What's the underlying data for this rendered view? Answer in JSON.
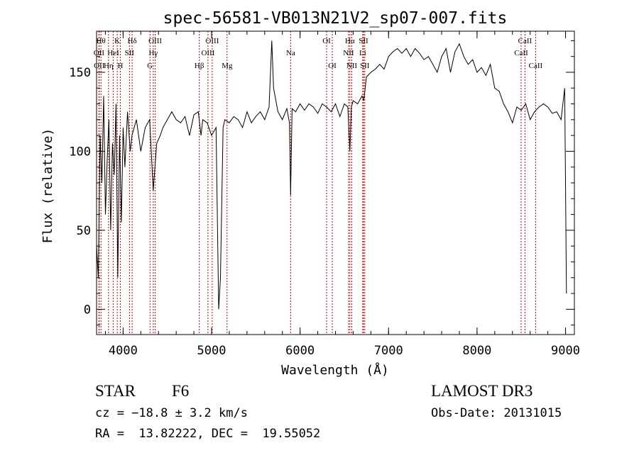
{
  "chart_data": {
    "type": "line",
    "title": "spec-56581-VB013N21V2_sp07-007.fits",
    "xlabel": "Wavelength (Å)",
    "ylabel": "Flux (relative)",
    "xlim": [
      3700,
      9100
    ],
    "ylim": [
      -16,
      176
    ],
    "xticks": [
      4000,
      5000,
      6000,
      7000,
      8000,
      9000
    ],
    "yticks": [
      0,
      50,
      100,
      150
    ],
    "grid": false,
    "line_color": "#000000",
    "marker_color": "#cc0000",
    "series": [
      {
        "x": [
          3700,
          3720,
          3740,
          3760,
          3780,
          3800,
          3820,
          3840,
          3860,
          3880,
          3900,
          3920,
          3940,
          3960,
          3980,
          4000,
          4020,
          4050,
          4080,
          4100,
          4150,
          4200,
          4250,
          4300,
          4340,
          4380,
          4420,
          4450,
          4500,
          4550,
          4600,
          4650,
          4700,
          4750,
          4800,
          4850,
          4880,
          4900,
          4950,
          5000,
          5050,
          5080,
          5100,
          5130,
          5150,
          5200,
          5250,
          5300,
          5350,
          5400,
          5450,
          5500,
          5550,
          5600,
          5650,
          5680,
          5700,
          5750,
          5800,
          5850,
          5880,
          5893,
          5910,
          5950,
          6000,
          6050,
          6100,
          6150,
          6200,
          6250,
          6300,
          6350,
          6400,
          6450,
          6500,
          6540,
          6563,
          6580,
          6600,
          6650,
          6700,
          6720,
          6750,
          6800,
          6850,
          6900,
          6950,
          7000,
          7050,
          7100,
          7150,
          7200,
          7250,
          7300,
          7350,
          7400,
          7450,
          7500,
          7550,
          7600,
          7650,
          7700,
          7750,
          7800,
          7850,
          7900,
          7950,
          8000,
          8050,
          8100,
          8150,
          8200,
          8250,
          8300,
          8350,
          8400,
          8450,
          8500,
          8550,
          8600,
          8650,
          8700,
          8750,
          8800,
          8850,
          8900,
          8950,
          8990,
          9000,
          9010
        ],
        "y": [
          40,
          20,
          110,
          80,
          135,
          60,
          95,
          120,
          50,
          105,
          85,
          130,
          20,
          110,
          55,
          115,
          90,
          125,
          100,
          110,
          120,
          100,
          115,
          120,
          75,
          105,
          110,
          115,
          120,
          125,
          120,
          118,
          122,
          110,
          123,
          125,
          110,
          120,
          118,
          110,
          115,
          0,
          20,
          115,
          120,
          118,
          122,
          120,
          115,
          125,
          118,
          122,
          125,
          120,
          128,
          170,
          140,
          125,
          120,
          127,
          118,
          72,
          127,
          125,
          130,
          126,
          130,
          128,
          124,
          130,
          128,
          125,
          130,
          122,
          130,
          128,
          100,
          128,
          132,
          130,
          135,
          132,
          147,
          150,
          152,
          155,
          152,
          160,
          163,
          165,
          162,
          165,
          160,
          165,
          162,
          158,
          160,
          155,
          150,
          160,
          165,
          150,
          163,
          168,
          160,
          155,
          158,
          150,
          153,
          148,
          155,
          140,
          138,
          130,
          125,
          118,
          128,
          126,
          130,
          120,
          125,
          128,
          130,
          128,
          124,
          125,
          120,
          140,
          80,
          10
        ],
        "name": ""
      }
    ],
    "lines": [
      {
        "label": "Hθ",
        "x": 3750,
        "row": 1
      },
      {
        "label": "OII",
        "x": 3727,
        "row": 2
      },
      {
        "label": "OII",
        "x": 3730,
        "row": 3
      },
      {
        "label": "K",
        "x": 3934,
        "row": 1
      },
      {
        "label": "H",
        "x": 3969,
        "row": 3
      },
      {
        "label": "HeI",
        "x": 3889,
        "row": 2
      },
      {
        "label": "Hη",
        "x": 3835,
        "row": 3
      },
      {
        "label": "SII",
        "x": 4072,
        "row": 2
      },
      {
        "label": "Hδ",
        "x": 4102,
        "row": 1
      },
      {
        "label": "OIII",
        "x": 4363,
        "row": 1
      },
      {
        "label": "Hγ",
        "x": 4341,
        "row": 2
      },
      {
        "label": "G",
        "x": 4304,
        "row": 3
      },
      {
        "label": "Hβ",
        "x": 4861,
        "row": 3
      },
      {
        "label": "OIII",
        "x": 5007,
        "row": 1
      },
      {
        "label": "OIII",
        "x": 4959,
        "row": 2
      },
      {
        "label": "Mg",
        "x": 5175,
        "row": 3
      },
      {
        "label": "Na",
        "x": 5893,
        "row": 2
      },
      {
        "label": "OI",
        "x": 6300,
        "row": 1
      },
      {
        "label": "OI",
        "x": 6364,
        "row": 3
      },
      {
        "label": "Hα",
        "x": 6563,
        "row": 1
      },
      {
        "label": "SII",
        "x": 6717,
        "row": 1
      },
      {
        "label": "NII",
        "x": 6548,
        "row": 2
      },
      {
        "label": "Li",
        "x": 6708,
        "row": 2
      },
      {
        "label": "NII",
        "x": 6584,
        "row": 3
      },
      {
        "label": "SII",
        "x": 6731,
        "row": 3
      },
      {
        "label": "CaII",
        "x": 8542,
        "row": 1
      },
      {
        "label": "CaII",
        "x": 8498,
        "row": 2
      },
      {
        "label": "CaII",
        "x": 8662,
        "row": 3
      }
    ]
  },
  "info": {
    "class_label": "STAR",
    "subclass": "F6",
    "cz": "cz = −18.8 ± 3.2 km/s",
    "coords": "RA =  13.82222, DEC =  19.55052",
    "survey": "LAMOST DR3",
    "obs_date": "Obs-Date: 20131015"
  }
}
